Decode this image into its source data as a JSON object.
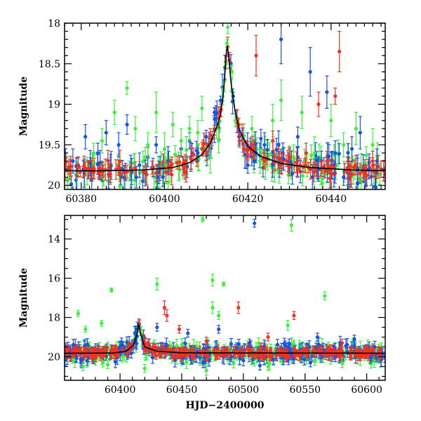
{
  "chart_data": [
    {
      "type": "scatter",
      "panel": "top",
      "ylabel": "Magnitude",
      "xlabel": "",
      "xlim": [
        60376,
        60453
      ],
      "ylim": [
        20.05,
        18.0
      ],
      "y_inverted": true,
      "x_ticks": [
        60380,
        60400,
        60420,
        60440
      ],
      "x_tick_labels": [
        "60380",
        "60400",
        "60420",
        "60440"
      ],
      "y_ticks": [
        18,
        18.5,
        19,
        19.5,
        20
      ],
      "y_tick_labels": [
        "18",
        "18.5",
        "19",
        "19.5",
        "20"
      ],
      "colors": {
        "blue": "#1a53e0",
        "green": "#3cf03c",
        "red": "#f0321e",
        "model": "#000000"
      },
      "model_curve": {
        "x": [
          60376,
          60385,
          60395,
          60402,
          60406,
          60409,
          60411,
          60413,
          60414,
          60414.6,
          60415,
          60415.4,
          60416,
          60417,
          60418,
          60420,
          60423,
          60428,
          60435,
          60445,
          60453
        ],
        "y": [
          19.82,
          19.82,
          19.81,
          19.78,
          19.72,
          19.62,
          19.48,
          19.22,
          18.95,
          18.55,
          18.25,
          18.4,
          18.75,
          19.1,
          19.32,
          19.52,
          19.64,
          19.73,
          19.78,
          19.81,
          19.82
        ]
      },
      "series": [
        {
          "name": "",
          "color": "blue",
          "points": [
            [
              60378,
              19.7,
              0.15
            ],
            [
              60381,
              19.4,
              0.15
            ],
            [
              60384,
              19.6,
              0.12
            ],
            [
              60386,
              19.35,
              0.15
            ],
            [
              60389,
              19.5,
              0.15
            ],
            [
              60391,
              19.25,
              0.12
            ],
            [
              60394,
              19.75,
              0.15
            ],
            [
              60396,
              19.65,
              0.12
            ],
            [
              60398,
              19.5,
              0.1
            ],
            [
              60401,
              19.7,
              0.12
            ],
            [
              60404,
              19.55,
              0.1
            ],
            [
              60406,
              19.45,
              0.1
            ],
            [
              60408,
              19.6,
              0.1
            ],
            [
              60410,
              19.4,
              0.08
            ],
            [
              60412,
              19.1,
              0.06
            ],
            [
              60413.5,
              18.95,
              0.05
            ],
            [
              60416.5,
              18.9,
              0.05
            ],
            [
              60418,
              19.4,
              0.08
            ],
            [
              60420,
              19.75,
              0.1
            ],
            [
              60422,
              19.6,
              0.12
            ],
            [
              60424,
              19.5,
              0.15
            ],
            [
              60426,
              19.75,
              0.15
            ],
            [
              60428,
              18.2,
              0.3
            ],
            [
              60430,
              19.7,
              0.15
            ],
            [
              60432,
              19.4,
              0.12
            ],
            [
              60435,
              18.6,
              0.3
            ],
            [
              60437,
              19.8,
              0.15
            ],
            [
              60439,
              18.85,
              0.2
            ],
            [
              60441,
              19.6,
              0.15
            ],
            [
              60443,
              19.9,
              0.1
            ],
            [
              60445,
              19.55,
              0.15
            ],
            [
              60447,
              19.35,
              0.2
            ],
            [
              60449,
              19.8,
              0.12
            ],
            [
              60451,
              19.7,
              0.15
            ]
          ]
        },
        {
          "name": "",
          "color": "green",
          "points": [
            [
              60379,
              19.85,
              0.15
            ],
            [
              60383,
              19.6,
              0.12
            ],
            [
              60385,
              19.45,
              0.15
            ],
            [
              60388,
              19.1,
              0.15
            ],
            [
              60391,
              18.8,
              0.08
            ],
            [
              60393,
              19.3,
              0.15
            ],
            [
              60396,
              19.5,
              0.15
            ],
            [
              60398,
              19.1,
              0.25
            ],
            [
              60400,
              19.55,
              0.2
            ],
            [
              60402,
              19.25,
              0.15
            ],
            [
              60404,
              19.45,
              0.15
            ],
            [
              60406,
              19.3,
              0.15
            ],
            [
              60408,
              19.35,
              0.15
            ],
            [
              60409,
              19.05,
              0.15
            ],
            [
              60411,
              19.65,
              0.2
            ],
            [
              60413,
              19.45,
              0.15
            ],
            [
              60414,
              18.9,
              0.1
            ],
            [
              60414.8,
              18.5,
              0.05
            ],
            [
              60415,
              18.25,
              0.05
            ],
            [
              60415.2,
              18.05,
              0.08
            ],
            [
              60416.2,
              18.6,
              0.08
            ],
            [
              60417,
              19.2,
              0.08
            ],
            [
              60419,
              19.55,
              0.1
            ],
            [
              60421,
              19.3,
              0.15
            ],
            [
              60423,
              19.7,
              0.15
            ],
            [
              60426,
              19.2,
              0.2
            ],
            [
              60428,
              18.95,
              0.25
            ],
            [
              60431,
              19.65,
              0.15
            ],
            [
              60433,
              19.1,
              0.2
            ],
            [
              60436,
              19.6,
              0.2
            ],
            [
              60440,
              19.2,
              0.2
            ],
            [
              60443,
              19.5,
              0.15
            ],
            [
              60446,
              19.3,
              0.2
            ],
            [
              60450,
              19.5,
              0.2
            ]
          ]
        },
        {
          "name": "",
          "color": "red",
          "points": [
            [
              60377,
              19.78,
              0.08
            ],
            [
              60379,
              19.82,
              0.08
            ],
            [
              60381,
              19.79,
              0.08
            ],
            [
              60383,
              19.84,
              0.08
            ],
            [
              60385,
              19.8,
              0.08
            ],
            [
              60387,
              19.81,
              0.08
            ],
            [
              60389,
              19.77,
              0.08
            ],
            [
              60391,
              19.83,
              0.08
            ],
            [
              60393,
              19.79,
              0.08
            ],
            [
              60395,
              19.84,
              0.08
            ],
            [
              60397,
              19.78,
              0.08
            ],
            [
              60399,
              19.8,
              0.08
            ],
            [
              60401,
              19.76,
              0.08
            ],
            [
              60403,
              19.72,
              0.08
            ],
            [
              60405,
              19.7,
              0.08
            ],
            [
              60407,
              19.62,
              0.08
            ],
            [
              60409,
              19.55,
              0.08
            ],
            [
              60411,
              19.38,
              0.08
            ],
            [
              60412,
              19.32,
              0.06
            ],
            [
              60418,
              19.45,
              0.08
            ],
            [
              60419,
              19.55,
              0.08
            ],
            [
              60420,
              19.62,
              0.08
            ],
            [
              60421,
              19.5,
              0.1
            ],
            [
              60422,
              18.4,
              0.25
            ],
            [
              60424,
              19.7,
              0.1
            ],
            [
              60426,
              19.45,
              0.12
            ],
            [
              60428,
              19.75,
              0.1
            ],
            [
              60430,
              19.65,
              0.12
            ],
            [
              60432,
              19.8,
              0.1
            ],
            [
              60434,
              19.6,
              0.12
            ],
            [
              60436,
              19.78,
              0.1
            ],
            [
              60437,
              19.0,
              0.15
            ],
            [
              60439,
              19.7,
              0.12
            ],
            [
              60441,
              18.9,
              0.1
            ],
            [
              60442,
              18.35,
              0.25
            ],
            [
              60444,
              19.8,
              0.1
            ],
            [
              60446,
              19.75,
              0.12
            ],
            [
              60448,
              19.85,
              0.1
            ],
            [
              60450,
              19.7,
              0.12
            ],
            [
              60452,
              19.8,
              0.1
            ]
          ]
        }
      ]
    },
    {
      "type": "scatter",
      "panel": "bottom",
      "ylabel": "Magnitude",
      "xlabel": "HJD−2400000",
      "xlim": [
        60355,
        60615
      ],
      "ylim": [
        21.2,
        12.8
      ],
      "y_inverted": true,
      "x_ticks": [
        60400,
        60450,
        60500,
        60550,
        60600
      ],
      "x_tick_labels": [
        "60400",
        "60450",
        "60500",
        "60550",
        "60600"
      ],
      "y_ticks": [
        14,
        16,
        18,
        20
      ],
      "y_tick_labels": [
        "14",
        "16",
        "18",
        "20"
      ],
      "colors": {
        "blue": "#1a53e0",
        "green": "#3cf03c",
        "red": "#f0321e",
        "model": "#000000"
      },
      "model_curve": {
        "x": [
          60360,
          60395,
          60405,
          60411,
          60414,
          60415,
          60416.5,
          60420,
          60430,
          60450,
          60605
        ],
        "y": [
          19.82,
          19.81,
          19.72,
          19.4,
          18.8,
          18.25,
          18.8,
          19.5,
          19.72,
          19.8,
          19.82
        ]
      },
      "series": [
        {
          "name": "",
          "color": "green",
          "points": [
            [
              60366,
              17.8,
              0.15
            ],
            [
              60372,
              18.6,
              0.15
            ],
            [
              60385,
              18.3,
              0.15
            ],
            [
              60393,
              16.6,
              0.1
            ],
            [
              60430,
              16.3,
              0.3
            ],
            [
              60467,
              13.0,
              0.12
            ],
            [
              60475,
              16.1,
              0.3
            ],
            [
              60475,
              17.5,
              0.3
            ],
            [
              60484,
              16.3,
              0.1
            ],
            [
              60480,
              17.9,
              0.2
            ],
            [
              60536,
              18.4,
              0.25
            ],
            [
              60539,
              13.3,
              0.3
            ],
            [
              60566,
              16.9,
              0.2
            ],
            [
              60370,
              20.5,
              0.2
            ],
            [
              60390,
              20.4,
              0.2
            ],
            [
              60420,
              20.6,
              0.2
            ],
            [
              60470,
              20.7,
              0.25
            ],
            [
              60520,
              20.5,
              0.2
            ],
            [
              60580,
              20.3,
              0.25
            ]
          ]
        },
        {
          "name": "",
          "color": "blue",
          "points": [
            [
              60509,
              13.2,
              0.2
            ],
            [
              60430,
              18.5,
              0.2
            ],
            [
              60455,
              18.8,
              0.2
            ],
            [
              60480,
              18.6,
              0.2
            ],
            [
              60505,
              19.3,
              0.2
            ],
            [
              60560,
              19.0,
              0.2
            ],
            [
              60590,
              19.1,
              0.2
            ]
          ]
        },
        {
          "name": "",
          "color": "red",
          "points": [
            [
              60436,
              17.5,
              0.35
            ],
            [
              60438,
              17.9,
              0.3
            ],
            [
              60496,
              17.5,
              0.3
            ],
            [
              60541,
              17.9,
              0.2
            ],
            [
              60448,
              18.6,
              0.2
            ],
            [
              60470,
              19.2,
              0.2
            ],
            [
              60520,
              19.0,
              0.2
            ],
            [
              60580,
              19.3,
              0.2
            ]
          ]
        }
      ]
    }
  ]
}
